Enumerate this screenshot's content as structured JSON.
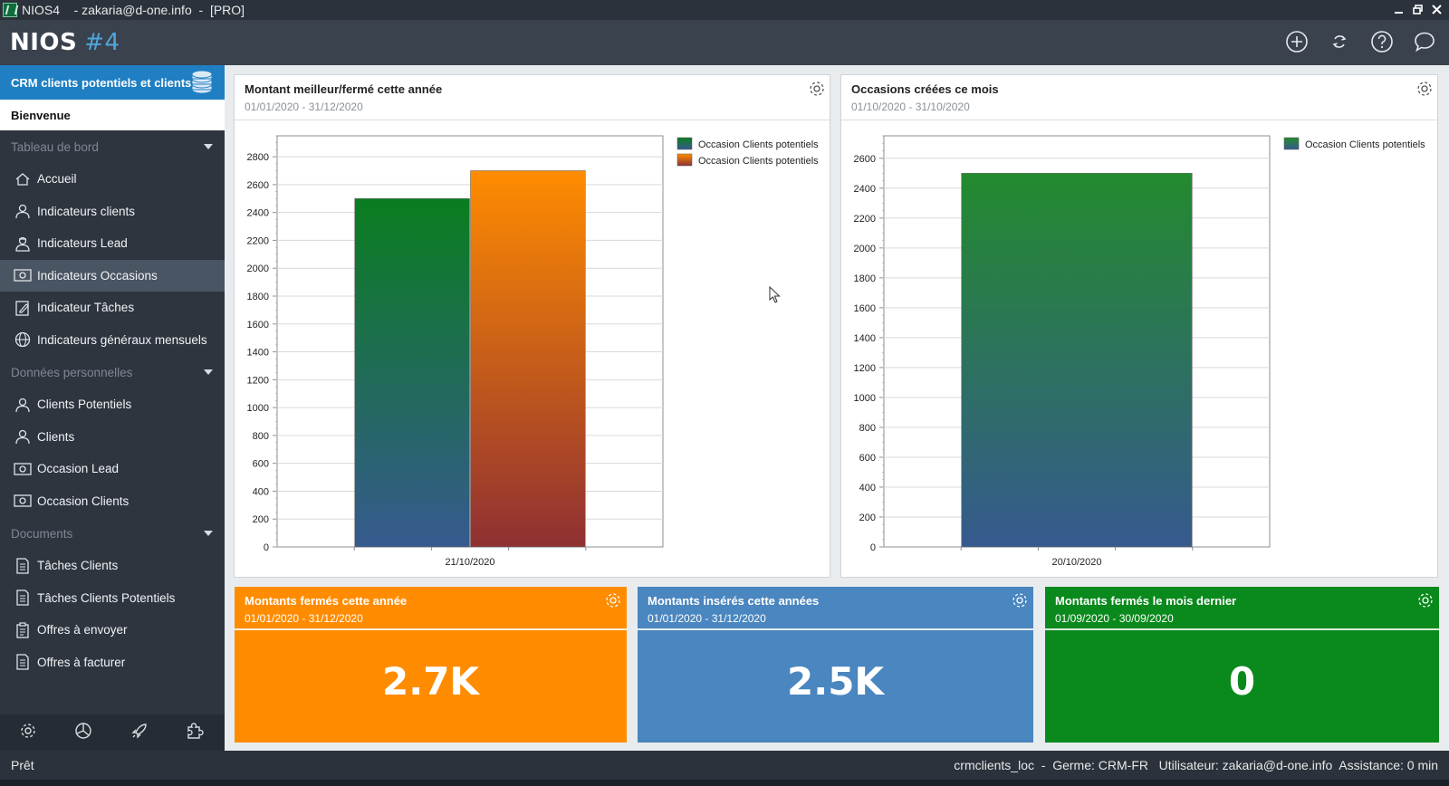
{
  "window": {
    "title": "NIOS4    - zakaria@d-one.info  -  [PRO]",
    "controls": [
      "minimize-icon",
      "restore-icon",
      "close-icon"
    ]
  },
  "header": {
    "logo": "NIOS",
    "version": "#4",
    "icons": [
      "add-icon",
      "sync-icon",
      "help-icon",
      "chat-icon"
    ]
  },
  "sidebar": {
    "crm_title": "CRM clients potentiels et clients",
    "welcome": "Bienvenue",
    "sections": [
      {
        "label": "Tableau de bord",
        "items": [
          {
            "label": "Accueil",
            "icon": "home-icon"
          },
          {
            "label": "Indicateurs clients",
            "icon": "person-icon"
          },
          {
            "label": "Indicateurs Lead",
            "icon": "lead-person-icon"
          },
          {
            "label": "Indicateurs Occasions",
            "icon": "money-icon",
            "active": true
          },
          {
            "label": "Indicateur Tâches",
            "icon": "task-edit-icon"
          },
          {
            "label": "Indicateurs généraux mensuels",
            "icon": "globe-icon"
          }
        ]
      },
      {
        "label": "Données personnelles",
        "items": [
          {
            "label": "Clients Potentiels",
            "icon": "person-icon"
          },
          {
            "label": "Clients",
            "icon": "person-icon"
          },
          {
            "label": "Occasion Lead",
            "icon": "money-icon"
          },
          {
            "label": "Occasion Clients",
            "icon": "money-icon"
          }
        ]
      },
      {
        "label": "Documents",
        "items": [
          {
            "label": "Tâches Clients",
            "icon": "document-icon"
          },
          {
            "label": "Tâches Clients Potentiels",
            "icon": "document-icon"
          },
          {
            "label": "Offres à envoyer",
            "icon": "clipboard-icon"
          },
          {
            "label": "Offres à facturer",
            "icon": "document-icon"
          }
        ]
      }
    ],
    "bottom_icons": [
      "settings-icon",
      "chart-pie-icon",
      "rocket-icon",
      "puzzle-icon"
    ]
  },
  "panels": [
    {
      "title": "Montant meilleur/fermé cette année",
      "dates": "01/01/2020 - 31/12/2020"
    },
    {
      "title": "Occasions créées ce mois",
      "dates": "01/10/2020 - 31/10/2020"
    }
  ],
  "chart_data": [
    {
      "type": "bar",
      "title": "Montant meilleur/fermé cette année",
      "categories": [
        "21/10/2020"
      ],
      "series": [
        {
          "name": "Occasion Clients potentiels",
          "values": [
            2500
          ],
          "color_top": "#0a7d1f",
          "color_bottom": "#365a8e"
        },
        {
          "name": "Occasion Clients potentiels",
          "values": [
            2700
          ],
          "color_top": "#ff8c00",
          "color_bottom": "#8f3033"
        }
      ],
      "yticks": [
        0,
        200,
        400,
        600,
        800,
        1000,
        1200,
        1400,
        1600,
        1800,
        2000,
        2200,
        2400,
        2600,
        2800
      ],
      "ylim": [
        0,
        2950
      ],
      "grid": true,
      "legend": "top-right"
    },
    {
      "type": "bar",
      "title": "Occasions créées ce mois",
      "categories": [
        "20/10/2020"
      ],
      "series": [
        {
          "name": "Occasion Clients potentiels",
          "values": [
            2500
          ],
          "color_top": "#238a2e",
          "color_bottom": "#365a8e"
        }
      ],
      "yticks": [
        0,
        200,
        400,
        600,
        800,
        1000,
        1200,
        1400,
        1600,
        1800,
        2000,
        2200,
        2400,
        2600
      ],
      "ylim": [
        0,
        2750
      ],
      "grid": true,
      "legend": "top-right"
    }
  ],
  "tiles": [
    {
      "title": "Montants fermés cette année",
      "dates": "01/01/2020 - 31/12/2020",
      "value": "2.7K",
      "color": "#ff8c00"
    },
    {
      "title": "Montants insérés cette années",
      "dates": "01/01/2020 - 31/12/2020",
      "value": "2.5K",
      "color": "#4a86bf"
    },
    {
      "title": "Montants fermés le mois dernier",
      "dates": "01/09/2020 - 30/09/2020",
      "value": "0",
      "color": "#0a8a1c"
    }
  ],
  "statusbar": {
    "ready": "Prêt",
    "info": "crmclients_loc  -  Germe: CRM-FR   Utilisateur: zakaria@d-one.info  Assistance: 0 min"
  }
}
